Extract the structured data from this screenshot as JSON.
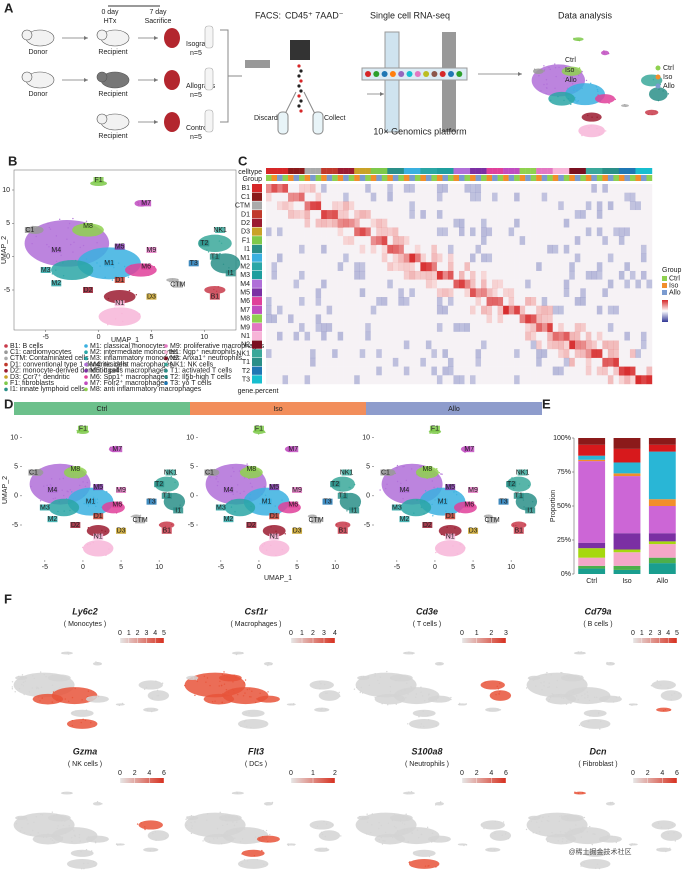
{
  "panel_a": {
    "label": "A",
    "timeline": {
      "start": "0 day",
      "start_event": "HTx",
      "end": "7 day",
      "end_event": "Sacrifice"
    },
    "rows": [
      {
        "donor": "Donor",
        "recipient": "Recipient",
        "graft": "Isografts",
        "n": "n=5"
      },
      {
        "donor": "Donor",
        "recipient": "Recipient",
        "graft": "Allografts",
        "n": "n=5"
      },
      {
        "recipient": "Recipient",
        "graft": "Control",
        "n": "n=5"
      }
    ],
    "facs": "FACS:",
    "facs_markers": "CD45⁺ 7AAD⁻",
    "discard": "Discard",
    "collect": "Collect",
    "seq_title": "Single cell RNA-seq",
    "platform": "10× Genomics platform",
    "analysis_title": "Data analysis",
    "umap_labels": [
      "Ctrl",
      "Iso",
      "Allo"
    ],
    "legend": [
      "Ctrl",
      "Iso",
      "Allo"
    ]
  },
  "panel_b": {
    "label": "B",
    "xlabel": "UMAP_1",
    "ylabel": "UMAP_2",
    "xlim": [
      -8,
      13
    ],
    "ylim": [
      -11,
      13
    ],
    "xticks": [
      -5,
      0,
      5,
      10
    ],
    "yticks": [
      10,
      5,
      0,
      -5
    ],
    "clusters": [
      "F1",
      "M7",
      "C1",
      "M8",
      "M4",
      "M3",
      "M2",
      "D1",
      "M6",
      "M5",
      "M1",
      "D2",
      "D3",
      "CTM",
      "N1",
      "B1",
      "NK1",
      "T2",
      "T1",
      "T3",
      "I1",
      "M9"
    ],
    "legend": [
      "B1: B cells",
      "C1: cardiomyocytes",
      "CTM: Contaminated cells",
      "D1: conventional type 1 dendritic cells",
      "D2: monocyte-derived dendritic cells",
      "D3: Ccr7⁺ dendritic",
      "F1: fibroblasts",
      "I1: innate lymphoid cells",
      "M1: classical monocytes",
      "M2: intermediate monocytes",
      "M3: inflammatory monocytes",
      "M4: resident macrophages",
      "M5: Itga4⁺ macrophages",
      "M6: Spp1⁺ macrophages",
      "M7: Folr2⁺ macrophages",
      "M8: anti inflammatory macrophages",
      "M9: proliferative macrophages",
      "N1: Ngp⁺ neutrophils",
      "N2: Anxa1⁺ neutrophils",
      "NK1: NK cells",
      "T1: activated T cells",
      "T2: Il5b-high T cells",
      "T3: γδ T cells"
    ]
  },
  "panel_c": {
    "label": "C",
    "annotations": [
      "celltype",
      "Group"
    ],
    "rows": [
      "B1",
      "C1",
      "CTM",
      "D1",
      "D2",
      "D3",
      "F1",
      "I1",
      "M1",
      "M2",
      "M3",
      "M4",
      "M5",
      "M6",
      "M7",
      "M8",
      "M9",
      "N1",
      "N2",
      "NK1",
      "T1",
      "T2",
      "T3"
    ],
    "size_label": "gene.percent",
    "legend_title": "Group",
    "legend": [
      "Ctrl",
      "Iso",
      "Allo"
    ]
  },
  "panel_d": {
    "label": "D",
    "groups": [
      "Ctrl",
      "Iso",
      "Allo"
    ],
    "xlabel": "UMAP_1",
    "ylabel": "UMAP_2",
    "xlim": [
      -8,
      13
    ],
    "ylim": [
      -11,
      13
    ],
    "xticks": [
      -5,
      0,
      5,
      10
    ],
    "yticks": [
      10,
      5,
      0,
      -5
    ],
    "clusters": [
      "F1",
      "M7",
      "C1",
      "M8",
      "M4",
      "M3",
      "M2",
      "D1",
      "M6",
      "M5",
      "M1",
      "D2",
      "D3",
      "CTM",
      "N1",
      "B1",
      "NK1",
      "T2",
      "T1",
      "T3",
      "I1",
      "M9"
    ]
  },
  "chart_data": {
    "type": "bar",
    "stacked": true,
    "panel_label": "E",
    "ylabel": "Proportion",
    "categories": [
      "Ctrl",
      "Iso",
      "Allo"
    ],
    "ylim": [
      0,
      100
    ],
    "yticks": [
      {
        "value": 0,
        "label": "0%"
      },
      {
        "value": 25,
        "label": "25%"
      },
      {
        "value": 50,
        "label": "50%"
      },
      {
        "value": 75,
        "label": "75%"
      },
      {
        "value": 100,
        "label": "100%"
      }
    ],
    "series": [
      {
        "color": "#1a9e8f",
        "values": [
          4,
          3,
          8
        ]
      },
      {
        "color": "#4daf4a",
        "values": [
          2,
          3,
          4
        ]
      },
      {
        "color": "#f4a6c8",
        "values": [
          6,
          10,
          10
        ]
      },
      {
        "color": "#a6d80e",
        "values": [
          7,
          2,
          2
        ]
      },
      {
        "color": "#7b2fa3",
        "values": [
          4,
          12,
          6
        ]
      },
      {
        "color": "#cc66d6",
        "values": [
          60,
          42,
          20
        ]
      },
      {
        "color": "#f28e2b",
        "values": [
          1,
          2,
          5
        ]
      },
      {
        "color": "#29b6d6",
        "values": [
          3,
          8,
          35
        ]
      },
      {
        "color": "#d7191c",
        "values": [
          8,
          10,
          5
        ]
      },
      {
        "color": "#8b1a1a",
        "values": [
          5,
          8,
          5
        ]
      }
    ]
  },
  "panel_f": {
    "label": "F",
    "plots": [
      {
        "gene": "Ly6c2",
        "cell": "( Monocytes )",
        "ticks": [
          0,
          1,
          2,
          3,
          4,
          5
        ]
      },
      {
        "gene": "Csf1r",
        "cell": "( Macrophages )",
        "ticks": [
          0,
          1,
          2,
          3,
          4
        ]
      },
      {
        "gene": "Cd3e",
        "cell": "( T cells )",
        "ticks": [
          0,
          1,
          2,
          3
        ]
      },
      {
        "gene": "Cd79a",
        "cell": "( B cells )",
        "ticks": [
          0,
          1,
          2,
          3,
          4,
          5
        ]
      },
      {
        "gene": "Gzma",
        "cell": "( NK cells )",
        "ticks": [
          0,
          2,
          4,
          6
        ]
      },
      {
        "gene": "Flt3",
        "cell": "( DCs )",
        "ticks": [
          0,
          1,
          2
        ]
      },
      {
        "gene": "S100a8",
        "cell": "( Neutrophils )",
        "ticks": [
          0,
          2,
          4,
          6
        ]
      },
      {
        "gene": "Dcn",
        "cell": "( Fibroblast )",
        "ticks": [
          0,
          2,
          4,
          6
        ]
      }
    ]
  },
  "watermark": "@稀土掘金技术社区"
}
